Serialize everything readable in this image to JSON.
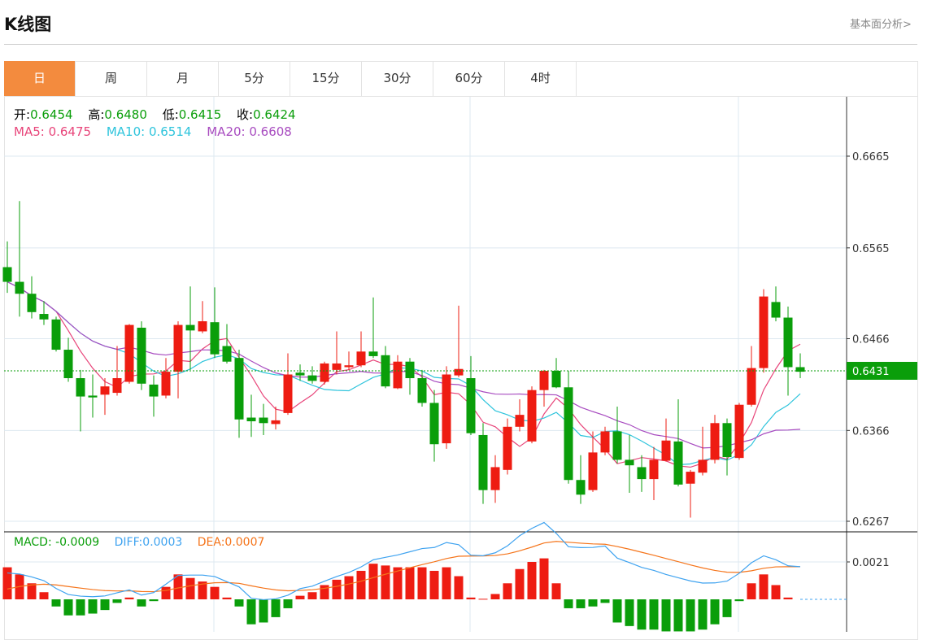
{
  "header": {
    "title": "K线图",
    "fundamental_link": "基本面分析>"
  },
  "tabs": [
    {
      "label": "日",
      "active": true
    },
    {
      "label": "周"
    },
    {
      "label": "月"
    },
    {
      "label": "5分"
    },
    {
      "label": "15分"
    },
    {
      "label": "30分"
    },
    {
      "label": "60分"
    },
    {
      "label": "4时"
    }
  ],
  "legend": {
    "open_label": "开:",
    "open": "0.6454",
    "high_label": "高:",
    "high": "0.6480",
    "low_label": "低:",
    "low": "0.6415",
    "close_label": "收:",
    "close": "0.6424",
    "ma5": "MA5: 0.6475",
    "ma10": "MA10: 0.6514",
    "ma20": "MA20: 0.6608"
  },
  "macd_legend": {
    "macd": "MACD: -0.0009",
    "diff_label": "DIFF:",
    "diff": "0.0003",
    "dea_label": "DEA:",
    "dea": "0.0007"
  },
  "colors": {
    "up": "#ee1c12",
    "down": "#0a9e0a",
    "ma5": "#e8457a",
    "ma10": "#2ec4dc",
    "ma20": "#a84cc0",
    "diff": "#3fa3f0",
    "dea": "#f5741a",
    "accent": "#f38b3e"
  },
  "chart_data": {
    "type": "candlestick",
    "price_axis_ticks": [
      "0.6665",
      "0.6565",
      "0.6466",
      "0.6366",
      "0.6267"
    ],
    "current_price": "0.6431",
    "macd_axis_ticks": [
      "0.0021"
    ],
    "ylim": [
      0.6267,
      0.6665
    ],
    "ohlc": [
      [
        0.6544,
        0.6528,
        0.6572,
        0.6516
      ],
      [
        0.6528,
        0.6515,
        0.6616,
        0.649
      ],
      [
        0.6515,
        0.6495,
        0.6534,
        0.6488
      ],
      [
        0.6493,
        0.6487,
        0.6507,
        0.6481
      ],
      [
        0.6487,
        0.6454,
        0.649,
        0.6452
      ],
      [
        0.6454,
        0.6423,
        0.6467,
        0.6419
      ],
      [
        0.6423,
        0.6403,
        0.6432,
        0.6365
      ],
      [
        0.6404,
        0.6402,
        0.6427,
        0.638
      ],
      [
        0.6405,
        0.6414,
        0.6423,
        0.6383
      ],
      [
        0.6407,
        0.6423,
        0.6458,
        0.6404
      ],
      [
        0.6419,
        0.6481,
        0.6482,
        0.6417
      ],
      [
        0.6478,
        0.6417,
        0.6485,
        0.641
      ],
      [
        0.6416,
        0.6403,
        0.6426,
        0.6381
      ],
      [
        0.6404,
        0.643,
        0.6445,
        0.6401
      ],
      [
        0.643,
        0.6481,
        0.6485,
        0.6401
      ],
      [
        0.6481,
        0.6475,
        0.6523,
        0.6432
      ],
      [
        0.6474,
        0.6485,
        0.6507,
        0.6472
      ],
      [
        0.6484,
        0.6449,
        0.6522,
        0.6445
      ],
      [
        0.6458,
        0.6441,
        0.6482,
        0.6439
      ],
      [
        0.6445,
        0.6378,
        0.6454,
        0.6358
      ],
      [
        0.638,
        0.6376,
        0.6405,
        0.6359
      ],
      [
        0.638,
        0.6374,
        0.6395,
        0.6361
      ],
      [
        0.6373,
        0.6377,
        0.6392,
        0.6367
      ],
      [
        0.6385,
        0.6427,
        0.645,
        0.6383
      ],
      [
        0.6429,
        0.6426,
        0.6438,
        0.642
      ],
      [
        0.6426,
        0.642,
        0.6436,
        0.6417
      ],
      [
        0.6419,
        0.6439,
        0.6441,
        0.6416
      ],
      [
        0.6432,
        0.6439,
        0.6474,
        0.6427
      ],
      [
        0.6435,
        0.6437,
        0.6452,
        0.6432
      ],
      [
        0.6437,
        0.6452,
        0.6474,
        0.6435
      ],
      [
        0.6452,
        0.6447,
        0.6511,
        0.6445
      ],
      [
        0.6448,
        0.6414,
        0.6458,
        0.6412
      ],
      [
        0.6412,
        0.6441,
        0.6448,
        0.6411
      ],
      [
        0.6441,
        0.6423,
        0.6445,
        0.6405
      ],
      [
        0.6423,
        0.6396,
        0.6432,
        0.6392
      ],
      [
        0.6396,
        0.6351,
        0.641,
        0.6332
      ],
      [
        0.6352,
        0.6427,
        0.6436,
        0.6346
      ],
      [
        0.6426,
        0.6433,
        0.6502,
        0.6424
      ],
      [
        0.6423,
        0.6363,
        0.6447,
        0.6361
      ],
      [
        0.6361,
        0.6301,
        0.6374,
        0.6286
      ],
      [
        0.6301,
        0.6326,
        0.6339,
        0.6287
      ],
      [
        0.6323,
        0.637,
        0.6379,
        0.6318
      ],
      [
        0.637,
        0.6383,
        0.64,
        0.6365
      ],
      [
        0.6354,
        0.641,
        0.6414,
        0.6352
      ],
      [
        0.641,
        0.6431,
        0.6432,
        0.6392
      ],
      [
        0.6431,
        0.6413,
        0.6445,
        0.6412
      ],
      [
        0.6413,
        0.6312,
        0.6431,
        0.6308
      ],
      [
        0.6312,
        0.6296,
        0.6339,
        0.6286
      ],
      [
        0.6301,
        0.6342,
        0.6365,
        0.6299
      ],
      [
        0.6342,
        0.6365,
        0.637,
        0.6339
      ],
      [
        0.6365,
        0.6334,
        0.6392,
        0.633
      ],
      [
        0.6334,
        0.6328,
        0.6361,
        0.6298
      ],
      [
        0.6326,
        0.6313,
        0.6339,
        0.6299
      ],
      [
        0.6313,
        0.6334,
        0.6348,
        0.629
      ],
      [
        0.6333,
        0.6355,
        0.6379,
        0.6332
      ],
      [
        0.6354,
        0.6307,
        0.64,
        0.6305
      ],
      [
        0.6308,
        0.6321,
        0.6323,
        0.6271
      ],
      [
        0.632,
        0.6334,
        0.637,
        0.6317
      ],
      [
        0.6334,
        0.6374,
        0.6383,
        0.633
      ],
      [
        0.6374,
        0.6337,
        0.6379,
        0.6317
      ],
      [
        0.6336,
        0.6394,
        0.6396,
        0.6334
      ],
      [
        0.6394,
        0.6434,
        0.6458,
        0.6392
      ],
      [
        0.6434,
        0.6512,
        0.652,
        0.6429
      ],
      [
        0.6506,
        0.6489,
        0.6523,
        0.6485
      ],
      [
        0.6489,
        0.6435,
        0.6501,
        0.6404
      ],
      [
        0.6435,
        0.643,
        0.645,
        0.6423
      ]
    ],
    "macd_hist": [
      0.0018,
      0.0014,
      0.0009,
      0.0004,
      -0.0004,
      -0.0009,
      -0.0009,
      -0.0008,
      -0.0006,
      -0.0002,
      0.0001,
      -0.0004,
      -0.0001,
      0.0007,
      0.0014,
      0.0012,
      0.001,
      0.0007,
      0.0001,
      -0.0004,
      -0.0014,
      -0.0013,
      -0.001,
      -0.0005,
      0.0002,
      0.0004,
      0.0008,
      0.0011,
      0.0013,
      0.0016,
      0.002,
      0.0019,
      0.0018,
      0.0018,
      0.0018,
      0.0016,
      0.0018,
      0.0013,
      0.0001,
      3e-05,
      0.0003,
      0.0009,
      0.0017,
      0.0021,
      0.0023,
      0.0009,
      -0.0005,
      -0.0005,
      -0.0004,
      -0.0002,
      -0.0013,
      -0.0015,
      -0.0017,
      -0.0017,
      -0.0018,
      -0.0018,
      -0.0018,
      -0.0017,
      -0.0014,
      -0.001,
      -0.0001,
      0.0009,
      0.0014,
      0.0008,
      0.0001,
      0
    ]
  }
}
